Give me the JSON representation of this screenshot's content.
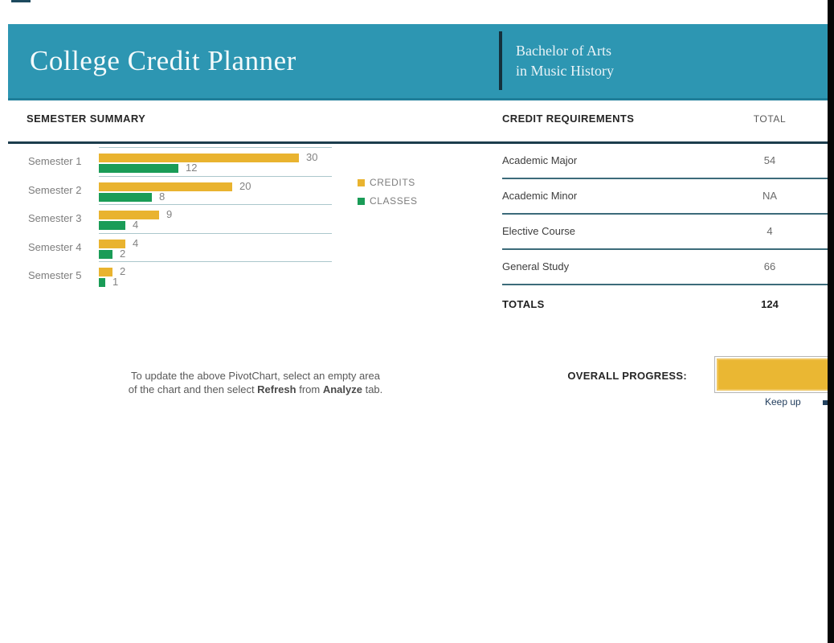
{
  "header": {
    "title": "College Credit Planner",
    "degree_line1": "Bachelor of Arts",
    "degree_line2": "in Music History"
  },
  "semester_summary": {
    "heading": "SEMESTER SUMMARY"
  },
  "chart_data": {
    "type": "bar",
    "orientation": "horizontal",
    "title": "SEMESTER SUMMARY",
    "categories": [
      "Semester 1",
      "Semester 2",
      "Semester 3",
      "Semester 4",
      "Semester 5"
    ],
    "series": [
      {
        "name": "CREDITS",
        "color": "#E9B32F",
        "values": [
          30,
          20,
          9,
          4,
          2
        ]
      },
      {
        "name": "CLASSES",
        "color": "#1A9C57",
        "values": [
          12,
          8,
          4,
          2,
          1
        ]
      }
    ],
    "xlim": [
      0,
      35
    ],
    "grid": "category-separators",
    "legend_position": "right",
    "value_labels": true
  },
  "pivot_note": {
    "line1": "To update the above PivotChart, select an empty area",
    "line2_prefix": "of the chart and then select ",
    "line2_bold1": "Refresh",
    "line2_mid": " from ",
    "line2_bold2": "Analyze",
    "line2_suffix": " tab."
  },
  "credit_requirements": {
    "heading": "CREDIT REQUIREMENTS",
    "total_header": "TOTAL",
    "rows": [
      {
        "label": "Academic Major",
        "total": "54"
      },
      {
        "label": "Academic Minor",
        "total": "NA"
      },
      {
        "label": "Elective Course",
        "total": "4"
      },
      {
        "label": "General Study",
        "total": "66"
      }
    ],
    "totals_label": "TOTALS",
    "totals_value": "124"
  },
  "progress": {
    "label": "OVERALL PROGRESS:",
    "fill_percent": 100,
    "note": "Keep up"
  },
  "colors": {
    "banner_teal": "#2D96B2",
    "accent_navy": "#1C3D4D",
    "credits_gold": "#E9B32F",
    "classes_green": "#1A9C57",
    "muted_text": "#7D7D7D",
    "note_navy": "#1E3A5A"
  }
}
